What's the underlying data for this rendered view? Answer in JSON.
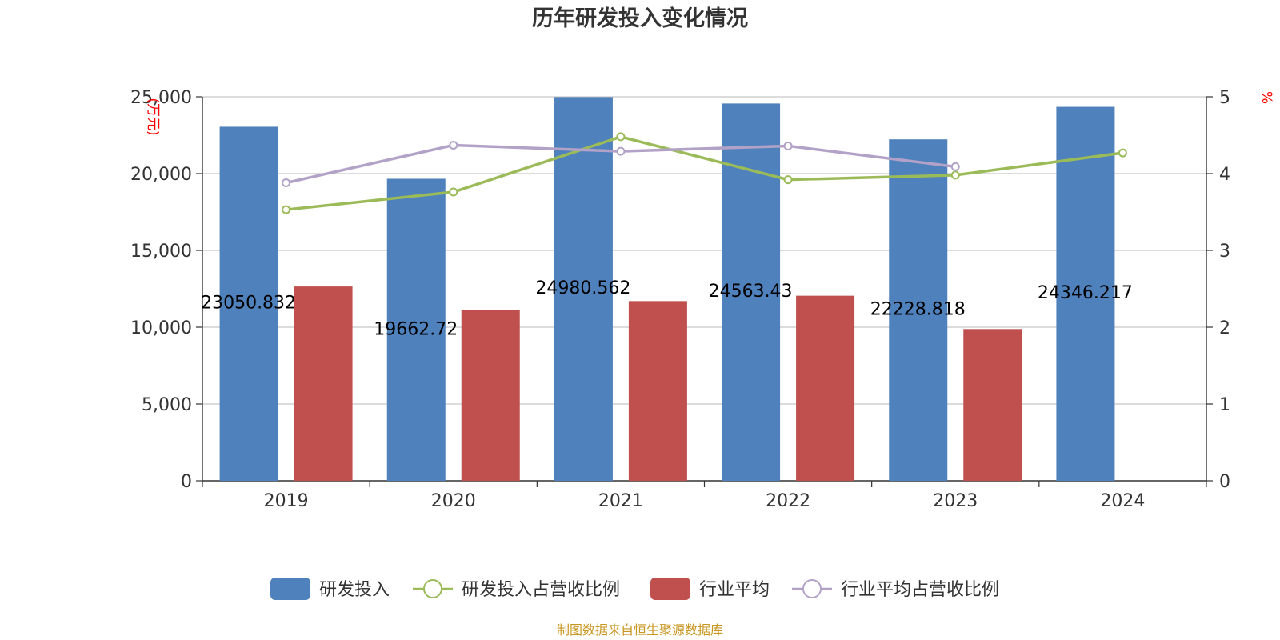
{
  "chart_data": {
    "type": "bar",
    "title": "历年研发投入变化情况",
    "categories": [
      "2019",
      "2020",
      "2021",
      "2022",
      "2023",
      "2024"
    ],
    "left_axis": {
      "unit": "(万元)",
      "ylim": [
        0,
        25000
      ],
      "ticks": [
        0,
        5000,
        10000,
        15000,
        20000,
        25000
      ],
      "tick_labels": [
        "0",
        "5,000",
        "10,000",
        "15,000",
        "20,000",
        "25,000"
      ]
    },
    "right_axis": {
      "unit": "%",
      "ylim": [
        0,
        5
      ],
      "ticks": [
        0,
        1,
        2,
        3,
        4,
        5
      ],
      "tick_labels": [
        "0",
        "1",
        "2",
        "3",
        "4",
        "5"
      ]
    },
    "grid": true,
    "legend_position": "bottom",
    "series": [
      {
        "name": "研发投入",
        "kind": "bar",
        "axis": "left",
        "color": "#4f81bd",
        "values": [
          23050.832,
          19662.72,
          24980.562,
          24563.43,
          22228.818,
          24346.217
        ],
        "labels": [
          "23050.832",
          "19662.72",
          "24980.562",
          "24563.43",
          "22228.818",
          "24346.217"
        ]
      },
      {
        "name": "研发投入占营收比例",
        "kind": "line",
        "axis": "right",
        "color": "#9bbb59",
        "values": [
          3.53,
          3.76,
          4.48,
          3.92,
          3.98,
          4.27
        ]
      },
      {
        "name": "行业平均",
        "kind": "bar",
        "axis": "left",
        "color": "#c0504d",
        "values": [
          12650,
          11100,
          11700,
          12050,
          9880,
          null
        ]
      },
      {
        "name": "行业平均占营收比例",
        "kind": "line",
        "axis": "right",
        "color": "#b3a2c7",
        "values": [
          3.88,
          4.37,
          4.29,
          4.36,
          4.09,
          null
        ]
      }
    ],
    "source": "制图数据来自恒生聚源数据库"
  }
}
